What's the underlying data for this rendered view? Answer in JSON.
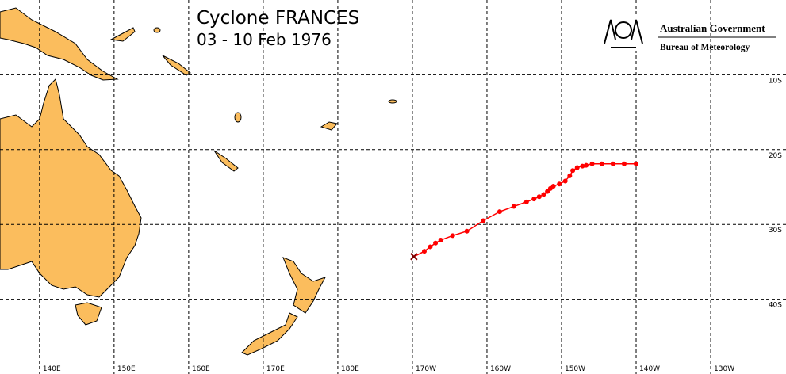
{
  "header": {
    "title": "Cyclone FRANCES",
    "subtitle": "03 - 10 Feb 1976"
  },
  "logo": {
    "line1": "Australian Government",
    "line2": "Bureau of Meteorology"
  },
  "map": {
    "lon_range": [
      134.7,
      240.1
    ],
    "lat_range": [
      0,
      -50
    ],
    "lon_ticks": [
      {
        "value": 140,
        "label": "140E"
      },
      {
        "value": 150,
        "label": "150E"
      },
      {
        "value": 160,
        "label": "160E"
      },
      {
        "value": 170,
        "label": "170E"
      },
      {
        "value": 180,
        "label": "180E"
      },
      {
        "value": 190,
        "label": "170W"
      },
      {
        "value": 200,
        "label": "160W"
      },
      {
        "value": 210,
        "label": "150W"
      },
      {
        "value": 220,
        "label": "140W"
      },
      {
        "value": 230,
        "label": "130W"
      }
    ],
    "lat_ticks": [
      {
        "value": -10,
        "label": "10S"
      },
      {
        "value": -20,
        "label": "20S"
      },
      {
        "value": -30,
        "label": "30S"
      },
      {
        "value": -40,
        "label": "40S"
      }
    ],
    "track": {
      "color": "#ff0000",
      "lon": [
        190.2,
        191.6,
        192.4,
        193.1,
        193.8,
        195.4,
        197.3,
        199.5,
        201.7,
        203.6,
        205.3,
        206.3,
        207.0,
        207.6,
        208.1,
        208.5,
        208.9,
        209.7,
        210.5,
        211.1,
        211.5,
        212.1,
        212.8,
        213.3,
        214.1,
        215.4,
        216.9,
        218.4,
        220.0
      ],
      "lat": [
        -34.3,
        -33.6,
        -33.0,
        -32.5,
        -32.1,
        -31.5,
        -30.9,
        -29.5,
        -28.3,
        -27.6,
        -27.0,
        -26.6,
        -26.3,
        -26.0,
        -25.6,
        -25.2,
        -24.9,
        -24.6,
        -24.2,
        -23.5,
        -22.8,
        -22.4,
        -22.2,
        -22.1,
        -21.9,
        -21.9,
        -21.9,
        -21.9,
        -21.9
      ]
    }
  }
}
